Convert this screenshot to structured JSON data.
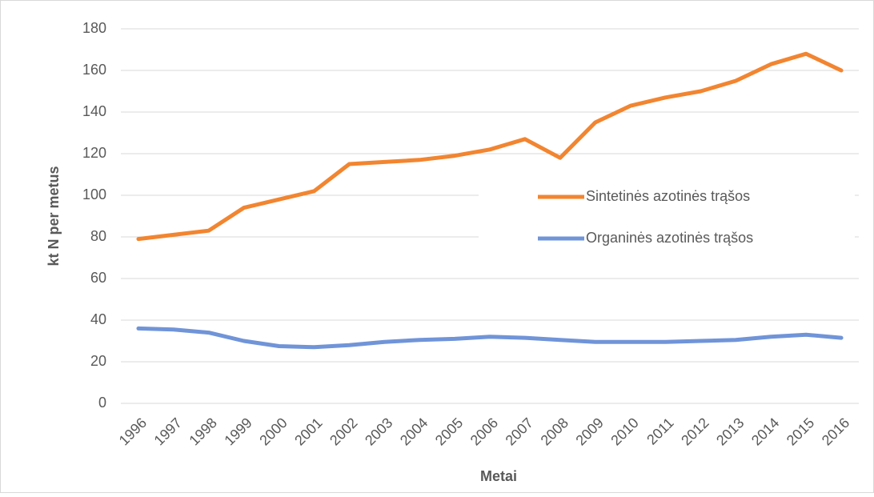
{
  "chart_data": {
    "type": "line",
    "x_label": "Metai",
    "y_label": "kt N per metus",
    "categories": [
      "1996",
      "1997",
      "1998",
      "1999",
      "2000",
      "2001",
      "2002",
      "2003",
      "2004",
      "2005",
      "2006",
      "2007",
      "2008",
      "2009",
      "2010",
      "2011",
      "2012",
      "2013",
      "2014",
      "2015",
      "2016"
    ],
    "series": [
      {
        "name": "Sintetinės azotinės trąšos",
        "color": "#f28530",
        "values": [
          79,
          81,
          83,
          94,
          98,
          102,
          115,
          116,
          117,
          119,
          122,
          127,
          118,
          135,
          143,
          147,
          150,
          155,
          163,
          168,
          160
        ]
      },
      {
        "name": "Organinės azotinės trąšos",
        "color": "#7094d8",
        "values": [
          36,
          35.5,
          34,
          30,
          27.5,
          27,
          28,
          29.5,
          30.5,
          31,
          32,
          31.5,
          30.5,
          29.5,
          29.5,
          29.5,
          30,
          30.5,
          32,
          33,
          31.5
        ]
      }
    ],
    "ylim": [
      0,
      180
    ],
    "yticks": [
      0,
      20,
      40,
      60,
      80,
      100,
      120,
      140,
      160,
      180
    ],
    "grid": true,
    "legend": "right"
  }
}
